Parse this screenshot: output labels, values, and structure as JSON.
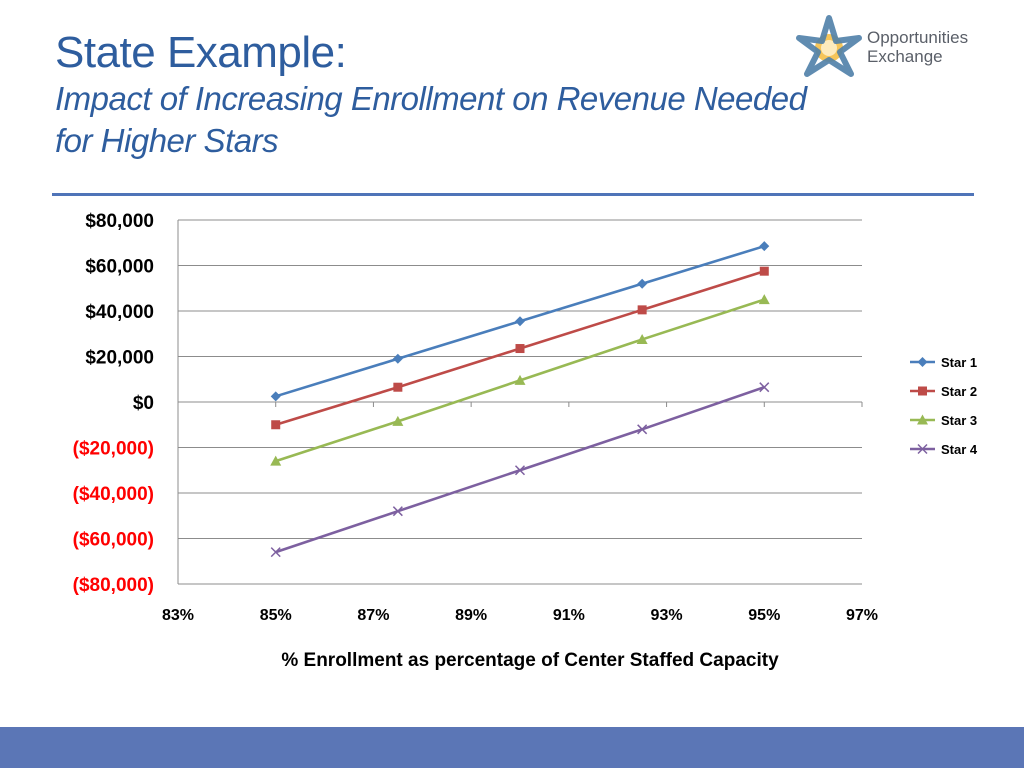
{
  "slide": {
    "title": "State Example:",
    "subtitle_line1": "Impact of Increasing Enrollment on Revenue Needed",
    "subtitle_line2": "for Higher Stars"
  },
  "logo": {
    "line1": "Opportunities",
    "line2": "Exchange",
    "icon": "star-sun-logo-icon",
    "colors": {
      "star": "#4f7fa8",
      "sun": "#f5c55a"
    }
  },
  "chart_data": {
    "type": "line",
    "title": "",
    "xlabel": "% Enrollment as percentage of Center Staffed Capacity",
    "ylabel": "",
    "xlim": [
      83,
      97
    ],
    "ylim": [
      -80000,
      80000
    ],
    "x_ticks": [
      "83%",
      "85%",
      "87%",
      "89%",
      "91%",
      "93%",
      "95%",
      "97%"
    ],
    "x_tick_values": [
      83,
      85,
      87,
      89,
      91,
      93,
      95,
      97
    ],
    "y_ticks": [
      "$80,000",
      "$60,000",
      "$40,000",
      "$20,000",
      "$0",
      "($20,000)",
      "($40,000)",
      "($60,000)",
      "($80,000)"
    ],
    "y_tick_values": [
      80000,
      60000,
      40000,
      20000,
      0,
      -20000,
      -40000,
      -60000,
      -80000
    ],
    "negative_tick_color": "#ff0000",
    "grid": true,
    "legend": "right",
    "x": [
      85,
      87.5,
      90,
      92.5,
      95
    ],
    "series": [
      {
        "name": "Star 1",
        "values": [
          2500,
          19000,
          35500,
          52000,
          68500
        ],
        "color": "#4a7ebb",
        "marker": "diamond"
      },
      {
        "name": "Star 2",
        "values": [
          -10000,
          6500,
          23500,
          40500,
          57500
        ],
        "color": "#be4b48",
        "marker": "square"
      },
      {
        "name": "Star 3",
        "values": [
          -26000,
          -8500,
          9500,
          27500,
          45000
        ],
        "color": "#98b954",
        "marker": "triangle"
      },
      {
        "name": "Star 4",
        "values": [
          -66000,
          -48000,
          -30000,
          -12000,
          6500
        ],
        "color": "#7d60a0",
        "marker": "x"
      }
    ]
  }
}
